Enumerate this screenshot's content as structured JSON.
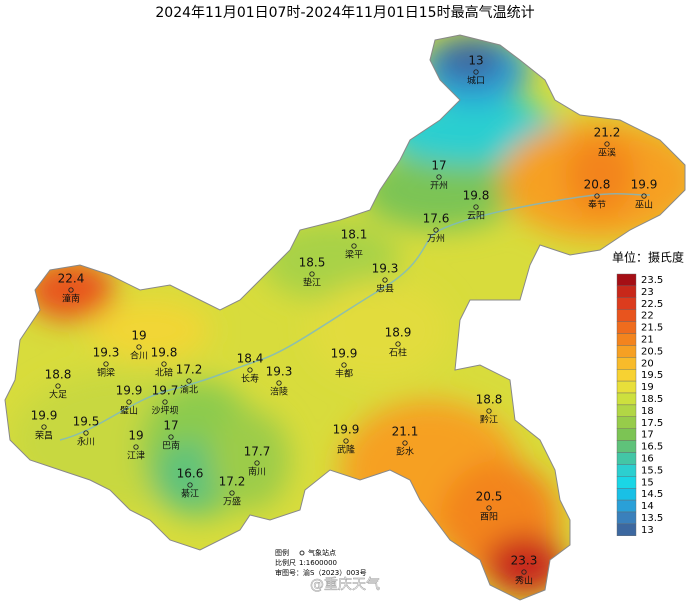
{
  "title": "2024年11月01日07时-2024年11月01日15时最高气温统计",
  "stations": [
    {
      "name": "城口",
      "value": 13
    },
    {
      "name": "巫溪",
      "value": 21.2
    },
    {
      "name": "奉节",
      "value": 20.8
    },
    {
      "name": "巫山",
      "value": 19.9
    },
    {
      "name": "开州",
      "value": 17
    },
    {
      "name": "云阳",
      "value": 19.8
    },
    {
      "name": "万州",
      "value": 17.6
    },
    {
      "name": "梁平",
      "value": 18.1
    },
    {
      "name": "垫江",
      "value": 18.5
    },
    {
      "name": "忠县",
      "value": 19.3
    },
    {
      "name": "潼南",
      "value": 22.4
    },
    {
      "name": "合川",
      "value": 19
    },
    {
      "name": "铜梁",
      "value": 19.3
    },
    {
      "name": "北碚",
      "value": 19.8
    },
    {
      "name": "渝北",
      "value": 17.2
    },
    {
      "name": "长寿",
      "value": 18.4
    },
    {
      "name": "石柱",
      "value": 18.9
    },
    {
      "name": "丰都",
      "value": 19.9
    },
    {
      "name": "大足",
      "value": 18.8
    },
    {
      "name": "璧山",
      "value": 19.9
    },
    {
      "name": "沙坪坝",
      "value": 19.7
    },
    {
      "name": "涪陵",
      "value": 19.3
    },
    {
      "name": "荣昌",
      "value": 19.9
    },
    {
      "name": "永川",
      "value": 19.5
    },
    {
      "name": "江津",
      "value": 19
    },
    {
      "name": "巴南",
      "value": 17
    },
    {
      "name": "武隆",
      "value": 19.9
    },
    {
      "name": "彭水",
      "value": 21.1
    },
    {
      "name": "黔江",
      "value": 18.8
    },
    {
      "name": "南川",
      "value": 17.7
    },
    {
      "name": "綦江",
      "value": 16.6
    },
    {
      "name": "万盛",
      "value": 17.2
    },
    {
      "name": "酉阳",
      "value": 20.5
    },
    {
      "name": "秀山",
      "value": 23.3
    }
  ],
  "legend": {
    "title": "单位：摄氏度",
    "items": [
      {
        "value": 23.5,
        "color": "#a50f15"
      },
      {
        "value": 23,
        "color": "#c8281a"
      },
      {
        "value": 22.5,
        "color": "#dc3c1e"
      },
      {
        "value": 22,
        "color": "#e8541e"
      },
      {
        "value": 21.5,
        "color": "#ef6c1e"
      },
      {
        "value": 21,
        "color": "#f3841e"
      },
      {
        "value": 20.5,
        "color": "#f6a023"
      },
      {
        "value": 20,
        "color": "#f8bb2a"
      },
      {
        "value": 19.5,
        "color": "#f7d232"
      },
      {
        "value": 19,
        "color": "#e8df3a"
      },
      {
        "value": 18.5,
        "color": "#cde03e"
      },
      {
        "value": 18,
        "color": "#b2d645"
      },
      {
        "value": 17.5,
        "color": "#97cc4a"
      },
      {
        "value": 17,
        "color": "#7cc454"
      },
      {
        "value": 16.5,
        "color": "#5fc27a"
      },
      {
        "value": 16,
        "color": "#43c6a6"
      },
      {
        "value": 15.5,
        "color": "#2ccfd0"
      },
      {
        "value": 15,
        "color": "#1ad6e6"
      },
      {
        "value": 14.5,
        "color": "#19c0e6"
      },
      {
        "value": 14,
        "color": "#2aa0d8"
      },
      {
        "value": 13.5,
        "color": "#3a80bc"
      },
      {
        "value": 13,
        "color": "#3c68a0"
      }
    ]
  },
  "notes": {
    "legend_label": "图例",
    "station_label": "气象站点",
    "scale_label": "比例尺",
    "scale": "1:1600000",
    "map_no": "审图号：渝S（2023）003号"
  },
  "watermark": "@重庆天气"
}
